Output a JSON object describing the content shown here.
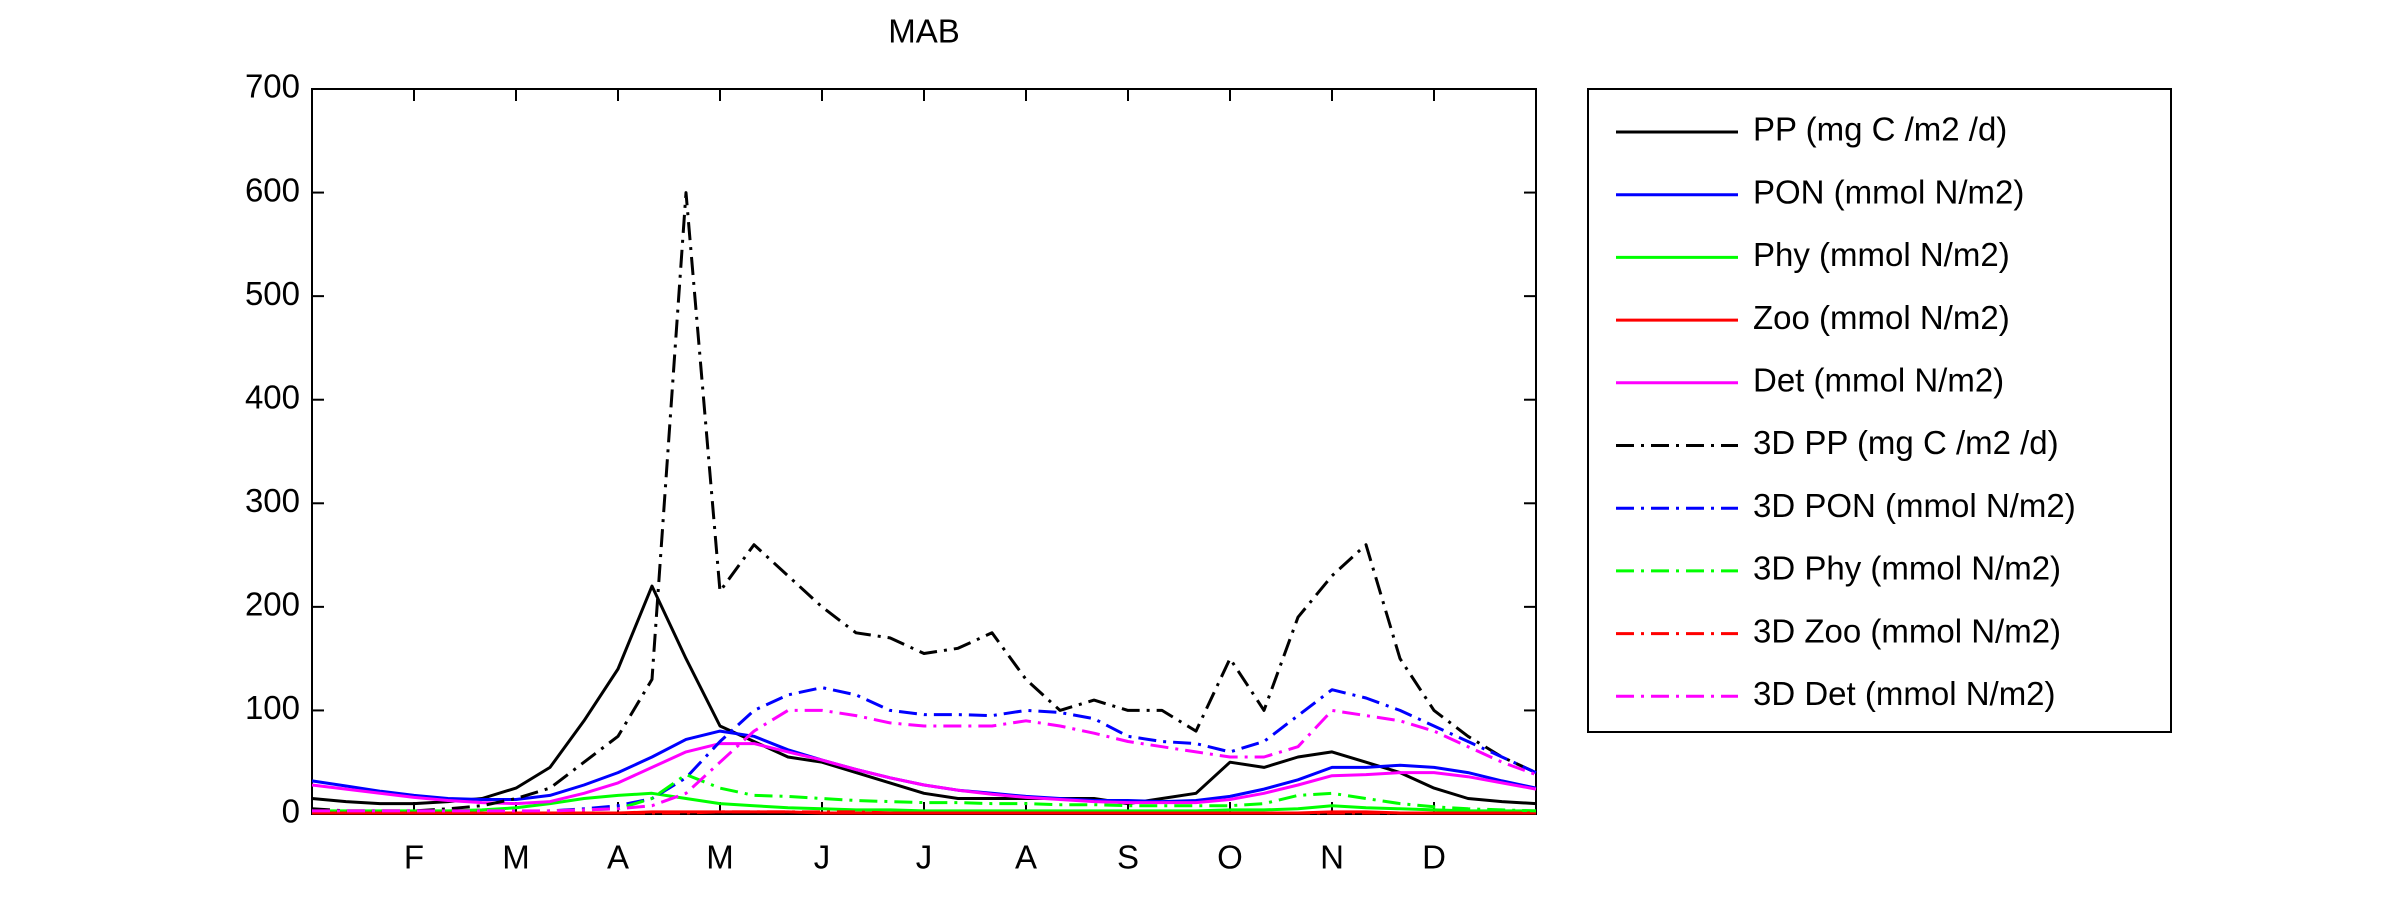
{
  "chart_data": {
    "type": "line",
    "title": "MAB",
    "categories": [
      null,
      null,
      null,
      "F",
      null,
      null,
      "M",
      null,
      null,
      "A",
      null,
      null,
      "M",
      null,
      null,
      "J",
      null,
      null,
      "J",
      null,
      null,
      "A",
      null,
      null,
      "S",
      null,
      null,
      "O",
      null,
      null,
      "N",
      null,
      null,
      "D",
      null,
      null,
      null
    ],
    "ylim": [
      0,
      700
    ],
    "yticks": [
      0,
      100,
      200,
      300,
      400,
      500,
      600,
      700
    ],
    "grid": false,
    "legend": "right",
    "series": [
      {
        "name": "PP (mg C /m2 /d)",
        "color": "#000000",
        "linestyle": "solid",
        "values": [
          15,
          12,
          10,
          10,
          12,
          15,
          25,
          45,
          90,
          140,
          220,
          150,
          85,
          70,
          55,
          50,
          40,
          30,
          20,
          15,
          15,
          15,
          15,
          15,
          10,
          15,
          20,
          50,
          45,
          55,
          60,
          50,
          40,
          25,
          15,
          12,
          10
        ]
      },
      {
        "name": "PON (mmol N/m2)",
        "color": "#0000ff",
        "linestyle": "solid",
        "values": [
          32,
          27,
          22,
          18,
          15,
          14,
          14,
          18,
          28,
          40,
          55,
          72,
          80,
          75,
          62,
          52,
          43,
          35,
          28,
          23,
          20,
          17,
          15,
          13,
          13,
          12,
          13,
          17,
          24,
          33,
          45,
          45,
          47,
          45,
          40,
          32,
          25
        ]
      },
      {
        "name": "Phy (mmol N/m2)",
        "color": "#00ff00",
        "linestyle": "solid",
        "values": [
          3,
          3,
          3,
          3,
          3,
          4,
          6,
          10,
          15,
          18,
          20,
          15,
          10,
          8,
          6,
          5,
          4,
          4,
          3,
          3,
          3,
          3,
          3,
          3,
          3,
          3,
          3,
          4,
          4,
          5,
          8,
          6,
          5,
          4,
          3,
          3,
          3
        ]
      },
      {
        "name": "Zoo (mmol N/m2)",
        "color": "#ff0000",
        "linestyle": "solid",
        "values": [
          1,
          1,
          1,
          1,
          1,
          1,
          1,
          1,
          1,
          1,
          2,
          2,
          2,
          2,
          2,
          1,
          1,
          1,
          1,
          1,
          1,
          1,
          1,
          1,
          1,
          1,
          1,
          1,
          1,
          1,
          2,
          2,
          1,
          1,
          1,
          1,
          1
        ]
      },
      {
        "name": "Det (mmol N/m2)",
        "color": "#ff00ff",
        "linestyle": "solid",
        "values": [
          28,
          24,
          20,
          16,
          13,
          11,
          10,
          12,
          20,
          30,
          45,
          60,
          68,
          68,
          60,
          52,
          43,
          35,
          28,
          23,
          19,
          16,
          14,
          12,
          11,
          11,
          11,
          14,
          20,
          28,
          37,
          38,
          40,
          40,
          36,
          30,
          24
        ]
      },
      {
        "name": "3D PP (mg C /m2 /d)",
        "color": "#000000",
        "linestyle": "dashdot",
        "values": [
          5,
          3,
          3,
          3,
          5,
          8,
          15,
          25,
          50,
          75,
          130,
          600,
          215,
          260,
          230,
          200,
          175,
          170,
          155,
          160,
          175,
          130,
          100,
          110,
          100,
          100,
          80,
          150,
          100,
          190,
          230,
          260,
          150,
          100,
          75,
          55,
          40
        ]
      },
      {
        "name": "3D PON (mmol N/m2)",
        "color": "#0000ff",
        "linestyle": "dashdot",
        "values": [
          3,
          2,
          2,
          2,
          2,
          2,
          2,
          3,
          5,
          8,
          15,
          35,
          70,
          100,
          115,
          122,
          115,
          100,
          96,
          96,
          95,
          100,
          98,
          92,
          75,
          70,
          68,
          60,
          70,
          95,
          120,
          112,
          100,
          85,
          70,
          55,
          40
        ]
      },
      {
        "name": "3D Phy (mmol N/m2)",
        "color": "#00ff00",
        "linestyle": "dashdot",
        "values": [
          2,
          2,
          2,
          2,
          2,
          2,
          2,
          3,
          4,
          5,
          15,
          38,
          25,
          18,
          17,
          15,
          13,
          12,
          11,
          11,
          10,
          10,
          9,
          9,
          8,
          8,
          8,
          8,
          10,
          18,
          20,
          15,
          10,
          7,
          5,
          4,
          3
        ]
      },
      {
        "name": "3D Zoo (mmol N/m2)",
        "color": "#ff0000",
        "linestyle": "dashdot",
        "values": [
          1,
          1,
          1,
          1,
          1,
          1,
          1,
          1,
          1,
          1,
          1,
          1,
          2,
          2,
          2,
          2,
          2,
          1,
          1,
          1,
          1,
          1,
          1,
          1,
          1,
          1,
          1,
          1,
          1,
          1,
          1,
          1,
          1,
          1,
          1,
          1,
          1
        ]
      },
      {
        "name": "3D Det (mmol N/m2)",
        "color": "#ff00ff",
        "linestyle": "dashdot",
        "values": [
          3,
          3,
          3,
          3,
          3,
          3,
          3,
          3,
          4,
          5,
          8,
          20,
          50,
          80,
          100,
          100,
          95,
          88,
          85,
          85,
          85,
          90,
          85,
          78,
          70,
          65,
          60,
          55,
          55,
          65,
          100,
          95,
          90,
          80,
          65,
          50,
          38
        ]
      }
    ]
  }
}
